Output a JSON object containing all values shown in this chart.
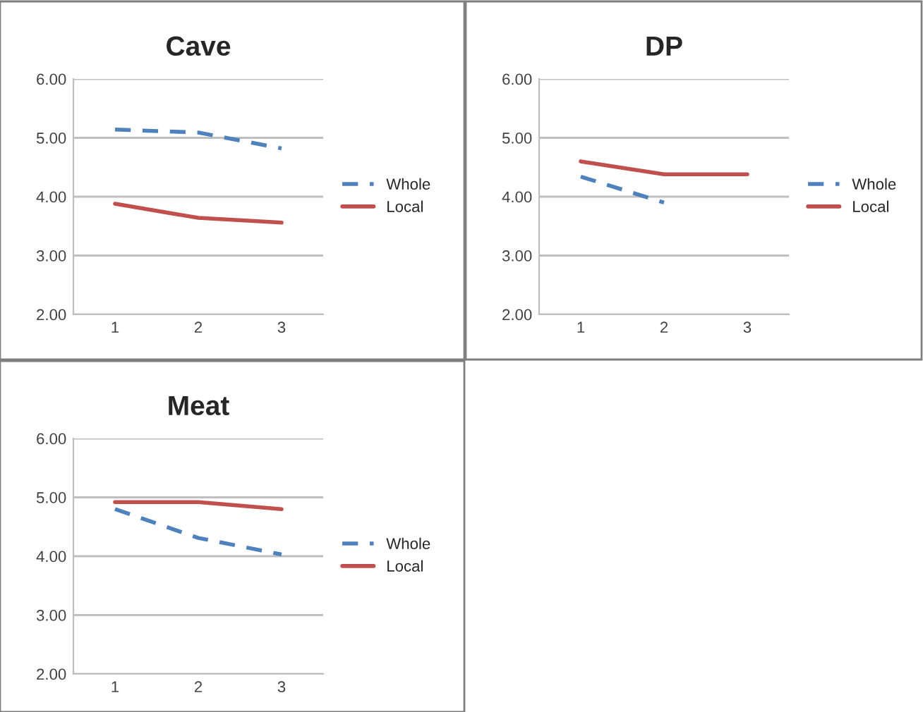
{
  "chart_data": [
    {
      "type": "line",
      "title": "Cave",
      "categories": [
        "1",
        "2",
        "3"
      ],
      "ylim": [
        2,
        6
      ],
      "yticks": [
        {
          "value": 2,
          "label": "2.00"
        },
        {
          "value": 3,
          "label": "3.00"
        },
        {
          "value": 4,
          "label": "4.00"
        },
        {
          "value": 5,
          "label": "5.00"
        },
        {
          "value": 6,
          "label": "6.00"
        }
      ],
      "grid": "y",
      "legend": "right",
      "marker": "none",
      "series": [
        {
          "name": "Whole",
          "color": "#4f81bd",
          "line_style": "dashed",
          "values": [
            5.14,
            5.09,
            4.82
          ]
        },
        {
          "name": "Local",
          "color": "#c0504d",
          "line_style": "solid",
          "values": [
            3.88,
            3.64,
            3.56
          ]
        }
      ]
    },
    {
      "type": "line",
      "title": "DP",
      "categories": [
        "1",
        "2",
        "3"
      ],
      "ylim": [
        2,
        6
      ],
      "yticks": [
        {
          "value": 2,
          "label": "2.00"
        },
        {
          "value": 3,
          "label": "3.00"
        },
        {
          "value": 4,
          "label": "4.00"
        },
        {
          "value": 5,
          "label": "5.00"
        },
        {
          "value": 6,
          "label": "6.00"
        }
      ],
      "grid": "y",
      "legend": "right",
      "marker": "none",
      "series": [
        {
          "name": "Whole",
          "color": "#4f81bd",
          "line_style": "dashed",
          "values": [
            4.34,
            3.9,
            null
          ]
        },
        {
          "name": "Local",
          "color": "#c0504d",
          "line_style": "solid",
          "values": [
            4.6,
            4.38,
            4.38
          ]
        }
      ]
    },
    {
      "type": "line",
      "title": "Meat",
      "categories": [
        "1",
        "2",
        "3"
      ],
      "ylim": [
        2,
        6
      ],
      "yticks": [
        {
          "value": 2,
          "label": "2.00"
        },
        {
          "value": 3,
          "label": "3.00"
        },
        {
          "value": 4,
          "label": "4.00"
        },
        {
          "value": 5,
          "label": "5.00"
        },
        {
          "value": 6,
          "label": "6.00"
        }
      ],
      "grid": "y",
      "legend": "right",
      "marker": "none",
      "series": [
        {
          "name": "Whole",
          "color": "#4f81bd",
          "line_style": "dashed",
          "values": [
            4.8,
            4.31,
            4.03
          ]
        },
        {
          "name": "Local",
          "color": "#c0504d",
          "line_style": "solid",
          "values": [
            4.92,
            4.92,
            4.8
          ]
        }
      ]
    }
  ]
}
